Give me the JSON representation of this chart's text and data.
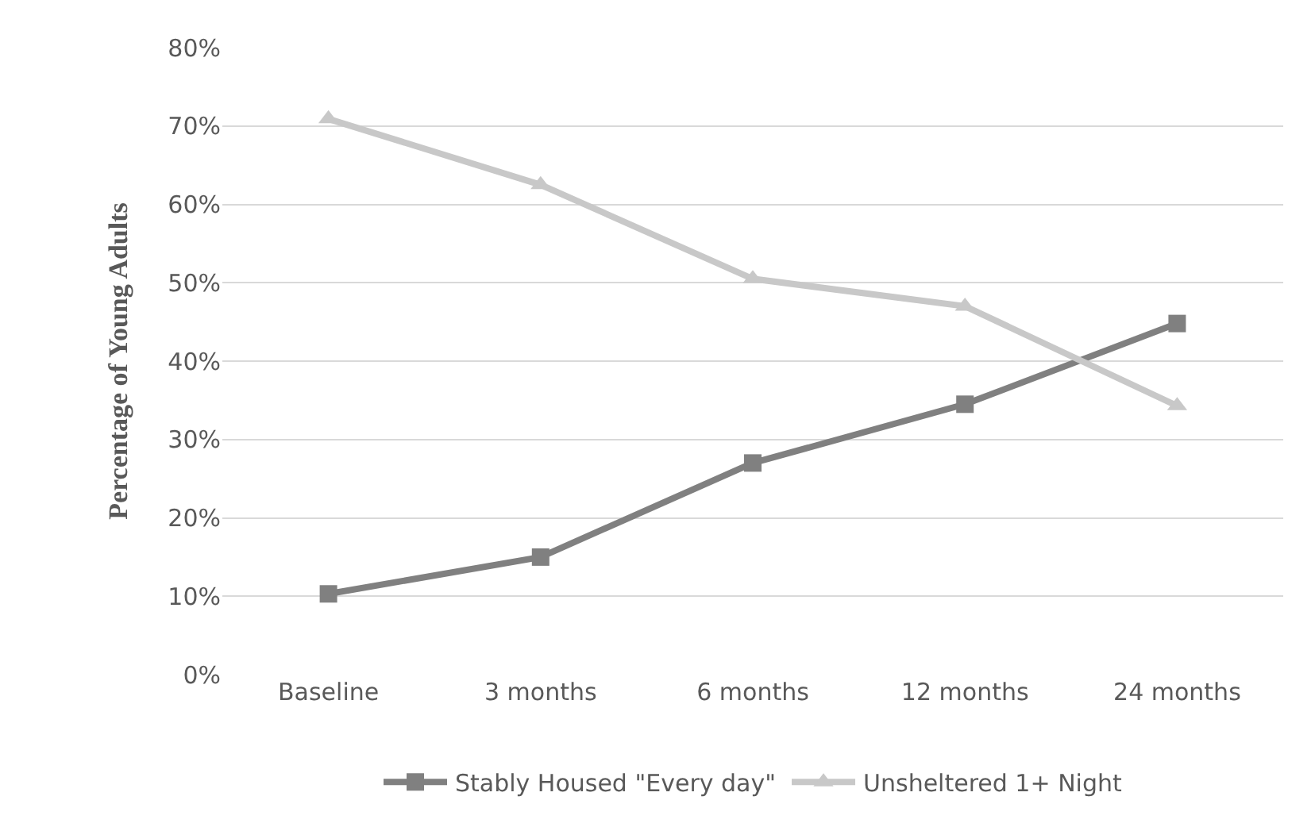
{
  "chart_data": {
    "type": "line",
    "ylabel": "Percentage of Young Adults",
    "categories": [
      "Baseline",
      "3 months",
      "6 months",
      "12 months",
      "24 months"
    ],
    "series": [
      {
        "name": "Stably Housed \"Every day\"",
        "color": "#808080",
        "values": [
          10.3,
          15.0,
          27.0,
          34.5,
          44.8
        ],
        "marker": "square"
      },
      {
        "name": "Unsheltered 1+ Night",
        "color": "#c8c8c8",
        "values": [
          70.9,
          62.5,
          50.5,
          47.0,
          34.3
        ],
        "marker": "triangle"
      }
    ],
    "ylim": [
      0,
      80
    ],
    "yticks": [
      {
        "value": 0,
        "label": "0%"
      },
      {
        "value": 10,
        "label": "10%"
      },
      {
        "value": 20,
        "label": "20%"
      },
      {
        "value": 30,
        "label": "30%"
      },
      {
        "value": 40,
        "label": "40%"
      },
      {
        "value": 50,
        "label": "50%"
      },
      {
        "value": 60,
        "label": "60%"
      },
      {
        "value": 70,
        "label": "70%"
      },
      {
        "value": 80,
        "label": "80%"
      }
    ],
    "grid": "y",
    "legend": "bottom",
    "line_style": "solid"
  }
}
